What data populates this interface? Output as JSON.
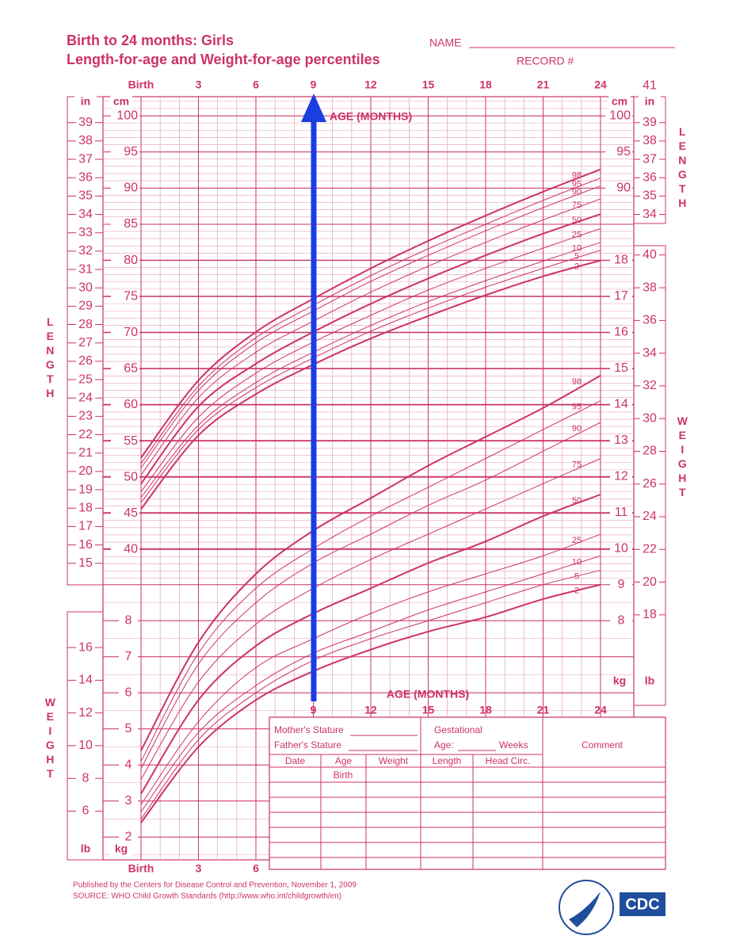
{
  "header": {
    "title": "Birth to 24 months: Girls",
    "subtitle": "Length-for-age and Weight-for-age percentiles",
    "name_label": "NAME",
    "record_label": "RECORD #"
  },
  "chart_data": [
    {
      "type": "line",
      "title": "LENGTH",
      "x_label": "AGE (MONTHS)",
      "y_label": "cm",
      "y2_label": "in",
      "x": [
        0,
        3,
        6,
        9,
        12,
        15,
        18,
        21,
        24
      ],
      "xlim": [
        0,
        24
      ],
      "xticks": [
        {
          "value": 0,
          "label": "Birth"
        },
        3,
        6,
        9,
        12,
        15,
        18,
        21,
        24
      ],
      "ylim": [
        35,
        104.2
      ],
      "yticks": [
        40,
        45,
        50,
        55,
        60,
        65,
        70,
        75,
        80,
        85,
        90,
        95,
        100
      ],
      "y2lim": [
        13.78,
        41.02
      ],
      "y2ticks": [
        15,
        16,
        17,
        18,
        19,
        20,
        21,
        22,
        23,
        24,
        25,
        26,
        27,
        28,
        29,
        30,
        31,
        32,
        33,
        34,
        35,
        36,
        37,
        38,
        39,
        41
      ],
      "series": [
        {
          "name": "98",
          "color": "#cc3366",
          "width": 2,
          "values": [
            52.7,
            63.4,
            70.1,
            74.7,
            78.9,
            82.7,
            86.2,
            89.5,
            92.6
          ]
        },
        {
          "name": "95",
          "color": "#cc3366",
          "width": 1,
          "values": [
            51.9,
            62.6,
            69.3,
            73.8,
            77.9,
            81.6,
            85.0,
            88.3,
            91.4
          ]
        },
        {
          "name": "90",
          "color": "#cc3366",
          "width": 1,
          "values": [
            51.3,
            62.0,
            68.6,
            73.0,
            77.1,
            80.7,
            84.1,
            87.3,
            90.3
          ]
        },
        {
          "name": "75",
          "color": "#cc3366",
          "width": 1,
          "values": [
            50.3,
            61.0,
            67.3,
            71.6,
            75.6,
            79.2,
            82.5,
            85.6,
            88.5
          ]
        },
        {
          "name": "50",
          "color": "#cc3366",
          "width": 2,
          "values": [
            49.1,
            59.8,
            65.7,
            70.1,
            74.0,
            77.5,
            80.7,
            83.7,
            86.4
          ]
        },
        {
          "name": "25",
          "color": "#cc3366",
          "width": 1,
          "values": [
            48.0,
            58.3,
            64.4,
            68.7,
            72.4,
            75.9,
            78.9,
            81.7,
            84.4
          ]
        },
        {
          "name": "10",
          "color": "#cc3366",
          "width": 1,
          "values": [
            47.2,
            57.2,
            63.1,
            67.3,
            71.0,
            74.3,
            77.2,
            79.9,
            82.5
          ]
        },
        {
          "name": "5",
          "color": "#cc3366",
          "width": 1,
          "values": [
            46.5,
            56.6,
            62.4,
            66.5,
            70.2,
            73.4,
            76.3,
            78.9,
            81.4
          ]
        },
        {
          "name": "2",
          "color": "#cc3366",
          "width": 2,
          "values": [
            45.6,
            55.8,
            61.5,
            65.6,
            69.2,
            72.3,
            75.2,
            77.8,
            80.0
          ]
        }
      ]
    },
    {
      "type": "line",
      "title": "WEIGHT",
      "x_label": "AGE (MONTHS)",
      "y_label": "kg",
      "y2_label": "lb",
      "x": [
        0,
        3,
        6,
        9,
        12,
        15,
        18,
        21,
        24
      ],
      "xlim": [
        0,
        24
      ],
      "xticks": [
        {
          "value": 0,
          "label": "Birth"
        },
        3,
        6,
        9,
        12,
        15,
        18,
        21,
        24
      ],
      "ylim": [
        1.5,
        18.5
      ],
      "yticks": [
        2,
        3,
        4,
        5,
        6,
        7,
        8,
        9,
        10,
        11,
        12,
        13,
        14,
        15,
        16,
        17,
        18
      ],
      "y2lim": [
        3.31,
        40.79
      ],
      "y2ticks": [
        6,
        8,
        10,
        12,
        14,
        16,
        18,
        20,
        22,
        24,
        26,
        28,
        30,
        32,
        34,
        36,
        38,
        40
      ],
      "series": [
        {
          "name": "98",
          "color": "#cc3366",
          "width": 2,
          "values": [
            4.4,
            7.4,
            9.3,
            10.5,
            11.4,
            12.3,
            13.1,
            13.9,
            14.8
          ]
        },
        {
          "name": "95",
          "color": "#cc3366",
          "width": 1,
          "values": [
            4.1,
            7.1,
            8.9,
            10.0,
            10.9,
            11.7,
            12.5,
            13.3,
            14.1
          ]
        },
        {
          "name": "90",
          "color": "#cc3366",
          "width": 1,
          "values": [
            3.9,
            6.8,
            8.5,
            9.6,
            10.4,
            11.2,
            11.9,
            12.7,
            13.5
          ]
        },
        {
          "name": "75",
          "color": "#cc3366",
          "width": 1,
          "values": [
            3.6,
            6.3,
            7.9,
            8.9,
            9.7,
            10.4,
            11.1,
            11.8,
            12.5
          ]
        },
        {
          "name": "50",
          "color": "#cc3366",
          "width": 2,
          "values": [
            3.2,
            5.8,
            7.3,
            8.2,
            8.9,
            9.6,
            10.2,
            10.9,
            11.5
          ]
        },
        {
          "name": "25",
          "color": "#cc3366",
          "width": 1,
          "values": [
            2.9,
            5.2,
            6.7,
            7.5,
            8.2,
            8.8,
            9.3,
            9.8,
            10.4
          ]
        },
        {
          "name": "10",
          "color": "#cc3366",
          "width": 1,
          "values": [
            2.7,
            4.9,
            6.2,
            7.1,
            7.7,
            8.3,
            8.8,
            9.3,
            9.8
          ]
        },
        {
          "name": "5",
          "color": "#cc3366",
          "width": 1,
          "values": [
            2.5,
            4.7,
            6.0,
            6.9,
            7.5,
            8.0,
            8.5,
            9.0,
            9.4
          ]
        },
        {
          "name": "2",
          "color": "#cc3366",
          "width": 2,
          "values": [
            2.4,
            4.5,
            5.8,
            6.6,
            7.2,
            7.7,
            8.1,
            8.6,
            9.0
          ]
        }
      ]
    }
  ],
  "table": {
    "mother": "Mother's Stature",
    "father": "Father's Stature",
    "gestational": "Gestational",
    "age": "Age:",
    "weeks": "Weeks",
    "comment": "Comment",
    "columns": [
      "Date",
      "Age",
      "Weight",
      "Length",
      "Head Circ."
    ],
    "first_row_age": "Birth"
  },
  "footer": {
    "published": "Published by the Centers for Disease Control and Prevention, November 1, 2009",
    "source": "SOURCE:  WHO Child Growth Standards (http://www.who.int/childgrowth/en)",
    "logo": "CDC"
  }
}
